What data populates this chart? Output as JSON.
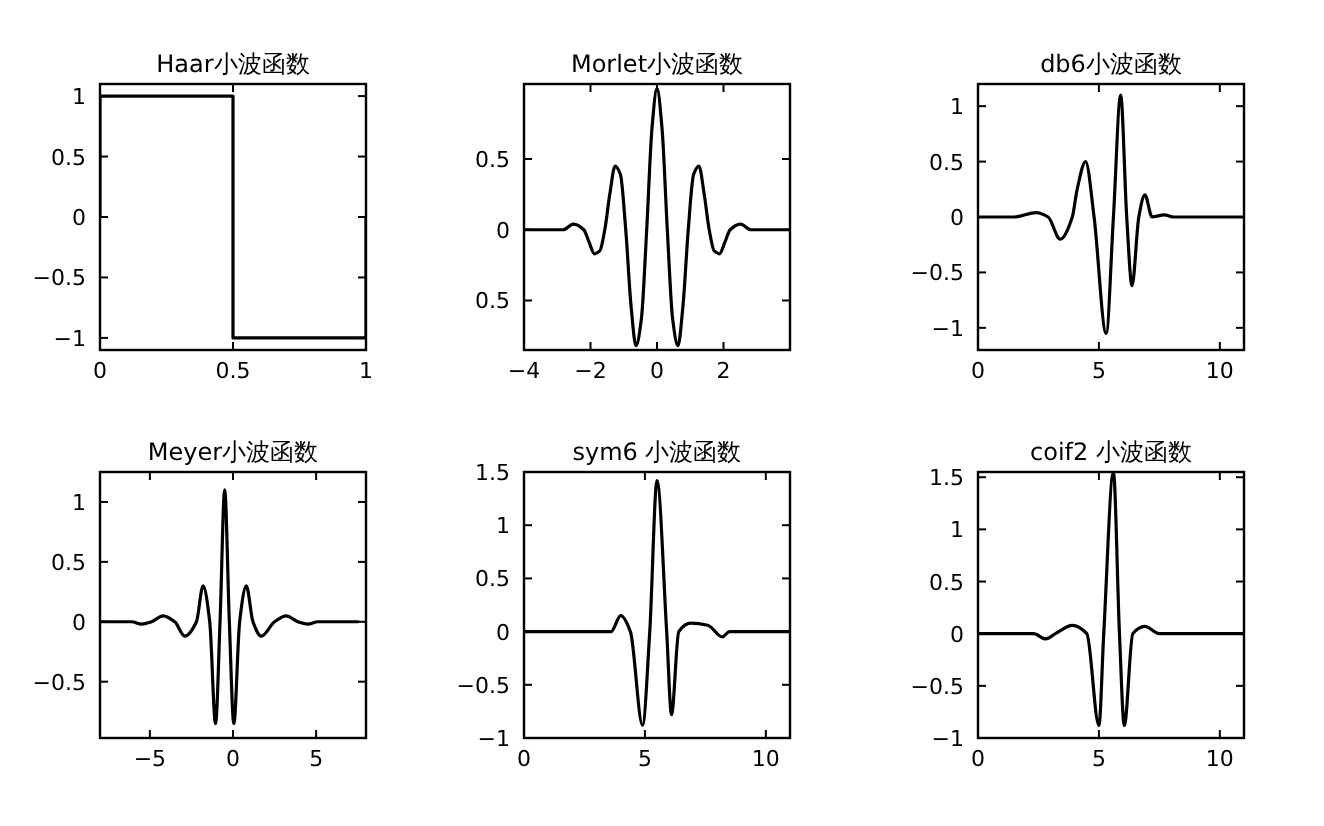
{
  "chart_data": [
    {
      "type": "line",
      "title": "Haar小波函数",
      "xlim": [
        0,
        1
      ],
      "ylim": [
        -1.1,
        1.1
      ],
      "xticks": [
        0,
        0.5,
        1
      ],
      "yticks": [
        -1,
        -0.5,
        0,
        0.5,
        1
      ],
      "grid": false,
      "series": [
        {
          "color": "#000000",
          "x": [
            0,
            0,
            0.5,
            0.5,
            1,
            1
          ],
          "values": [
            0,
            1,
            1,
            -1,
            -1,
            0
          ]
        }
      ]
    },
    {
      "type": "line",
      "title": "Morlet小波函数",
      "xlim": [
        -4,
        4
      ],
      "ylim": [
        -0.85,
        1.03
      ],
      "xticks": [
        -4,
        -2,
        0,
        2
      ],
      "yticks": [
        {
          "value": -0.5,
          "label": "0.5"
        },
        0,
        0.5
      ],
      "grid": false,
      "series": [
        {
          "color": "#000000",
          "x": [
            -4,
            -3.2,
            -2.83,
            -2.51,
            -2.2,
            -2.04,
            -1.88,
            -1.72,
            -1.57,
            -1.42,
            -1.26,
            -1.1,
            -0.94,
            -0.78,
            -0.63,
            -0.47,
            -0.31,
            -0.15,
            0,
            0.15,
            0.31,
            0.47,
            0.63,
            0.78,
            0.94,
            1.1,
            1.26,
            1.42,
            1.57,
            1.72,
            1.88,
            2.04,
            2.2,
            2.51,
            2.83,
            3.2,
            4
          ],
          "values": [
            0,
            0,
            0,
            0.04,
            0,
            -0.09,
            -0.17,
            -0.15,
            0,
            0.25,
            0.45,
            0.39,
            0,
            -0.54,
            -0.82,
            -0.63,
            0,
            0.72,
            1,
            0.72,
            0,
            -0.63,
            -0.82,
            -0.54,
            0,
            0.39,
            0.45,
            0.25,
            0,
            -0.15,
            -0.17,
            -0.09,
            0,
            0.04,
            0,
            0,
            0
          ]
        }
      ]
    },
    {
      "type": "line",
      "title": "db6小波函数",
      "xlim": [
        0,
        11
      ],
      "ylim": [
        -1.2,
        1.2
      ],
      "xticks": [
        0,
        5,
        10
      ],
      "yticks": [
        -1,
        -0.5,
        0,
        0.5,
        1
      ],
      "grid": false,
      "series": [
        {
          "color": "#000000",
          "x": [
            0,
            1.5,
            2.4,
            2.9,
            3.4,
            3.9,
            4.1,
            4.45,
            4.8,
            5.3,
            5.6,
            5.9,
            6.15,
            6.37,
            6.65,
            6.9,
            7.2,
            7.7,
            8.1,
            11
          ],
          "values": [
            0,
            0,
            0.04,
            0,
            -0.2,
            0,
            0.25,
            0.5,
            0,
            -1.05,
            0,
            1.1,
            0,
            -0.62,
            0,
            0.2,
            0,
            0.02,
            0,
            0
          ]
        }
      ]
    },
    {
      "type": "line",
      "title": "Meyer小波函数",
      "xlim": [
        -8,
        8
      ],
      "ylim": [
        -0.97,
        1.25
      ],
      "xticks": [
        -5,
        0,
        5
      ],
      "yticks": [
        -0.5,
        0,
        0.5,
        1
      ],
      "grid": false,
      "series": [
        {
          "color": "#000000",
          "x": [
            -8,
            -6.1,
            -5.5,
            -4.9,
            -4.2,
            -3.5,
            -2.9,
            -2.2,
            -1.8,
            -1.4,
            -1.05,
            -0.78,
            -0.5,
            -0.22,
            0.05,
            0.4,
            0.8,
            1.2,
            1.7,
            2.5,
            3.2,
            3.9,
            4.5,
            5.1,
            7.5
          ],
          "values": [
            0,
            0,
            -0.02,
            0,
            0.05,
            0,
            -0.12,
            0,
            0.3,
            0,
            -0.85,
            0,
            1.1,
            0,
            -0.85,
            0,
            0.3,
            0,
            -0.12,
            0,
            0.05,
            0,
            -0.02,
            0,
            0
          ]
        }
      ]
    },
    {
      "type": "line",
      "title": "sym6 小波函数",
      "xlim": [
        0,
        11
      ],
      "ylim": [
        -1,
        1.5
      ],
      "xticks": [
        0,
        5,
        10
      ],
      "yticks": [
        -1,
        -0.5,
        0,
        0.5,
        1,
        1.5
      ],
      "grid": false,
      "series": [
        {
          "color": "#000000",
          "x": [
            0,
            3.6,
            4.0,
            4.4,
            4.9,
            5.2,
            5.5,
            5.9,
            6.1,
            6.4,
            6.9,
            7.6,
            8.2,
            8.5,
            11
          ],
          "values": [
            0,
            0,
            0.15,
            0,
            -0.88,
            0,
            1.42,
            0,
            -0.78,
            0,
            0.08,
            0.06,
            -0.05,
            0,
            0
          ]
        }
      ]
    },
    {
      "type": "line",
      "title": "coif2 小波函数",
      "xlim": [
        0,
        11
      ],
      "ylim": [
        -1,
        1.55
      ],
      "xticks": [
        0,
        5,
        10
      ],
      "yticks": [
        -1,
        -0.5,
        0,
        0.5,
        1,
        1.5
      ],
      "grid": false,
      "series": [
        {
          "color": "#000000",
          "x": [
            0,
            2.3,
            2.8,
            3.2,
            3.9,
            4.5,
            5.0,
            5.2,
            5.6,
            5.85,
            6.05,
            6.4,
            6.9,
            7.5,
            11
          ],
          "values": [
            0,
            0,
            -0.05,
            0,
            0.08,
            0,
            -0.88,
            0,
            1.55,
            0,
            -0.88,
            0,
            0.07,
            0,
            0
          ]
        }
      ]
    }
  ]
}
